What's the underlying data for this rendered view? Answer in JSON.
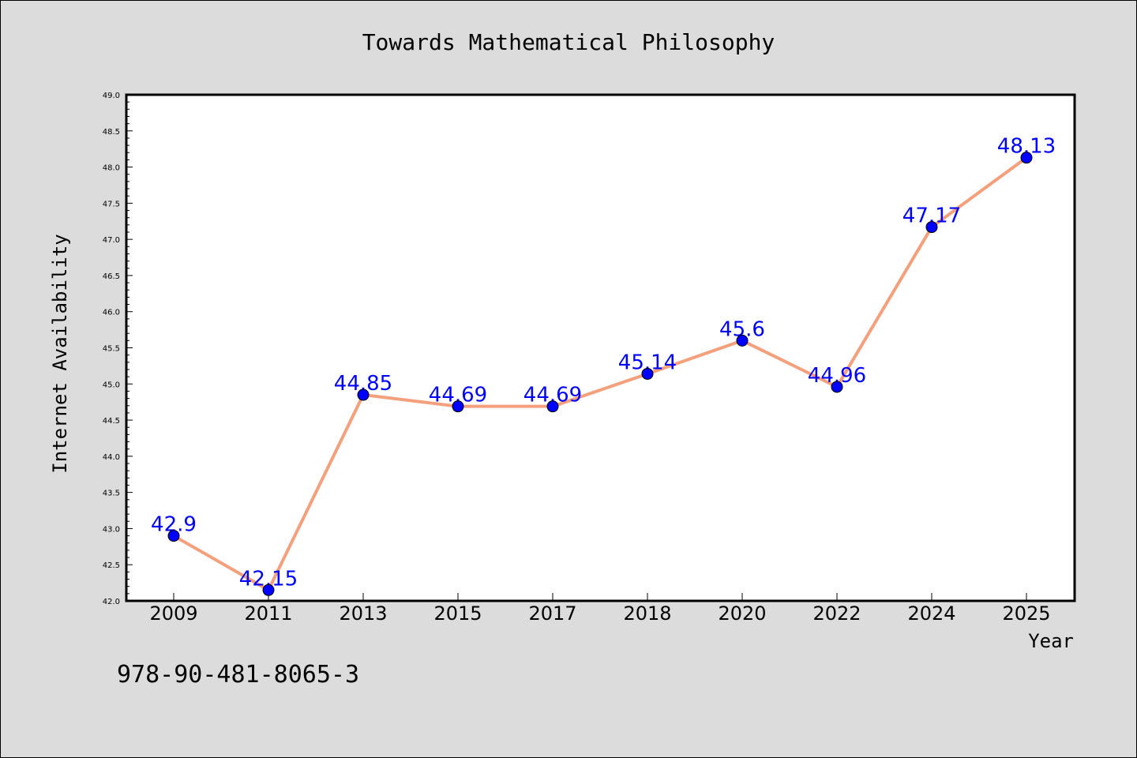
{
  "chart_data": {
    "type": "line",
    "title": "Towards Mathematical Philosophy",
    "xlabel": "Year",
    "ylabel": "Internet Availability",
    "categories": [
      "2009",
      "2011",
      "2013",
      "2015",
      "2017",
      "2018",
      "2020",
      "2022",
      "2024",
      "2025"
    ],
    "series": [
      {
        "values": [
          42.9,
          42.15,
          44.85,
          44.69,
          44.69,
          45.14,
          45.6,
          44.96,
          47.17,
          48.13
        ],
        "labels": [
          "42.9",
          "42.15",
          "44.85",
          "44.69",
          "44.69",
          "45.14",
          "45.6",
          "44.96",
          "47.17",
          "48.13"
        ]
      }
    ],
    "ylim": [
      42.0,
      49.0
    ],
    "yticks": [
      "42.0",
      "42.5",
      "43.0",
      "43.5",
      "44.0",
      "44.5",
      "45.0",
      "45.5",
      "46.0",
      "46.5",
      "47.0",
      "47.5",
      "48.0",
      "48.5",
      "49.0"
    ],
    "grid": false,
    "colors": {
      "line": "#f4a07c",
      "marker": "#0000ff",
      "data_label": "#0000ff",
      "plot_background": "#ffffff",
      "figure_background": "#dcdcdc"
    }
  },
  "footer": {
    "isbn": "978-90-481-8065-3"
  }
}
